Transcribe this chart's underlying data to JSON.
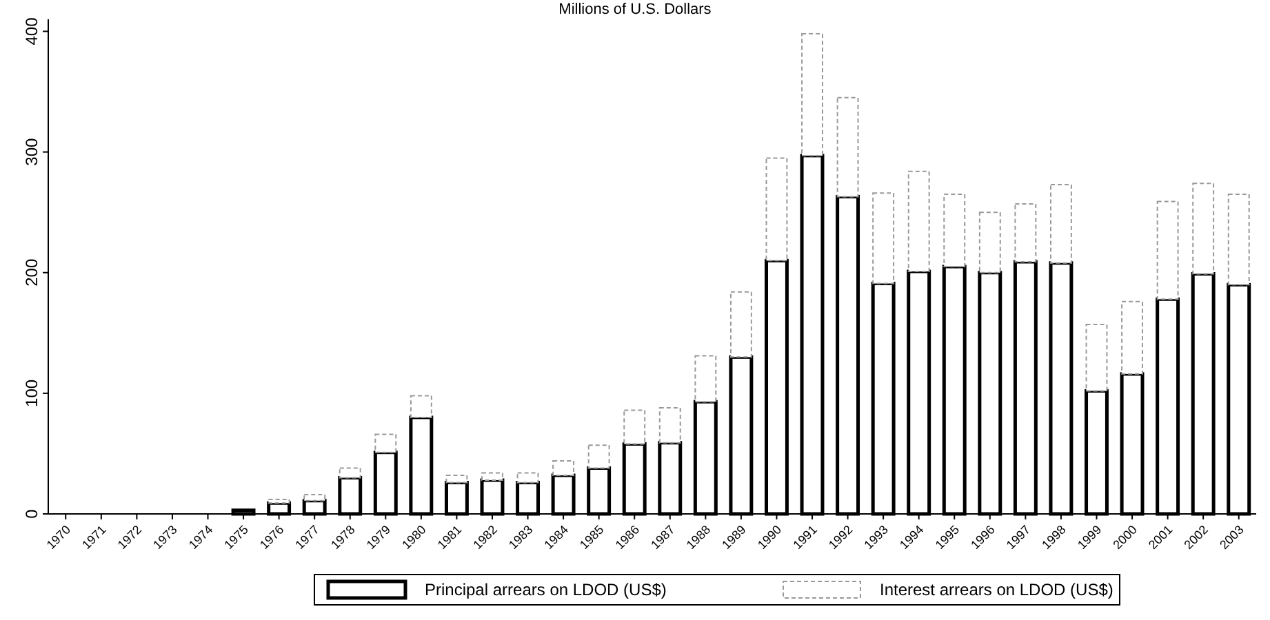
{
  "chart_data": {
    "type": "bar",
    "title": "Millions of U.S. Dollars",
    "stacked": true,
    "categories": [
      "1970",
      "1971",
      "1972",
      "1973",
      "1974",
      "1975",
      "1976",
      "1977",
      "1978",
      "1979",
      "1980",
      "1981",
      "1982",
      "1983",
      "1984",
      "1985",
      "1986",
      "1987",
      "1988",
      "1989",
      "1990",
      "1991",
      "1992",
      "1993",
      "1994",
      "1995",
      "1996",
      "1997",
      "1998",
      "1999",
      "2000",
      "2001",
      "2002",
      "2003"
    ],
    "series": [
      {
        "name": "Principal arrears on LDOD (US$)",
        "color": "#000000",
        "line_style": "solid",
        "values": [
          0,
          0,
          0,
          0,
          0,
          3,
          9,
          11,
          30,
          51,
          80,
          26,
          28,
          26,
          32,
          38,
          58,
          59,
          93,
          130,
          210,
          297,
          263,
          191,
          201,
          205,
          200,
          209,
          208,
          102,
          116,
          178,
          199,
          190
        ]
      },
      {
        "name": "Interest arrears on LDOD (US$)",
        "color": "#999999",
        "line_style": "dashed",
        "values": [
          0,
          0,
          0,
          0,
          0,
          0,
          3,
          5,
          8,
          15,
          18,
          6,
          6,
          8,
          12,
          19,
          28,
          29,
          38,
          54,
          85,
          101,
          82,
          75,
          83,
          60,
          50,
          48,
          65,
          55,
          60,
          81,
          75,
          75
        ]
      }
    ],
    "ylim": [
      0,
      410
    ],
    "yticks": [
      0,
      100,
      200,
      300,
      400
    ],
    "grid": false,
    "legend": "bottom"
  }
}
